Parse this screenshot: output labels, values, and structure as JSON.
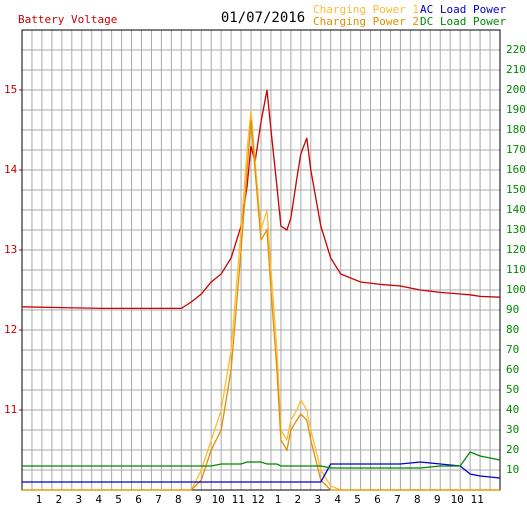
{
  "chart_data": {
    "type": "line",
    "title": "Battery Voltage",
    "subtitle": "01/07/2016",
    "x": [
      0,
      2,
      4,
      6,
      8,
      8.5,
      9,
      9.5,
      10,
      10.5,
      11,
      11.3,
      11.5,
      11.7,
      12,
      12.3,
      12.5,
      12.8,
      13,
      13.3,
      13.5,
      13.8,
      14,
      14.3,
      14.5,
      15,
      15.5,
      16,
      17,
      18,
      19,
      20,
      21,
      22,
      22.5,
      23,
      24
    ],
    "series": [
      {
        "name": "Battery Voltage",
        "color": "#cc0000",
        "axis": "y",
        "values": [
          12.29,
          12.28,
          12.27,
          12.27,
          12.27,
          12.35,
          12.45,
          12.6,
          12.7,
          12.9,
          13.3,
          13.8,
          14.3,
          14.1,
          14.6,
          15.0,
          14.5,
          13.8,
          13.3,
          13.25,
          13.4,
          13.9,
          14.2,
          14.4,
          14.0,
          13.3,
          12.9,
          12.7,
          12.6,
          12.57,
          12.55,
          12.5,
          12.47,
          12.45,
          12.44,
          12.42,
          12.41
        ]
      },
      {
        "name": "Charging Power 1",
        "color": "#ffbb33",
        "axis": "y2",
        "values": [
          0,
          0,
          0,
          0,
          0,
          0,
          10,
          25,
          40,
          70,
          130,
          170,
          190,
          165,
          130,
          140,
          110,
          70,
          30,
          25,
          35,
          40,
          45,
          40,
          30,
          10,
          2,
          0,
          0,
          0,
          0,
          0,
          0,
          0,
          0,
          0,
          0
        ]
      },
      {
        "name": "Charging Power 2",
        "color": "#e09000",
        "axis": "y2",
        "values": [
          0,
          0,
          0,
          0,
          0,
          0,
          5,
          20,
          30,
          60,
          120,
          160,
          185,
          160,
          125,
          130,
          100,
          60,
          25,
          20,
          30,
          35,
          38,
          35,
          25,
          5,
          0,
          0,
          0,
          0,
          0,
          0,
          0,
          0,
          0,
          0,
          0
        ]
      },
      {
        "name": "AC Load Power",
        "color": "#0000cc",
        "axis": "y2",
        "values": [
          4,
          4,
          4,
          4,
          4,
          4,
          4,
          4,
          4,
          4,
          4,
          4,
          4,
          4,
          4,
          4,
          4,
          4,
          4,
          4,
          4,
          4,
          4,
          4,
          4,
          4,
          13,
          13,
          13,
          13,
          13,
          14,
          13,
          12,
          8,
          7,
          6
        ]
      },
      {
        "name": "DC Load Power",
        "color": "#008800",
        "axis": "y2",
        "values": [
          12,
          12,
          12,
          12,
          12,
          12,
          12,
          12,
          13,
          13,
          13,
          14,
          14,
          14,
          14,
          13,
          13,
          13,
          12,
          12,
          12,
          12,
          12,
          12,
          12,
          12,
          11,
          11,
          11,
          11,
          11,
          11,
          12,
          12,
          19,
          17,
          15
        ]
      }
    ],
    "xlim": [
      0,
      24
    ],
    "xticks": [
      {
        "value": 1,
        "label": "1"
      },
      {
        "value": 2,
        "label": "2"
      },
      {
        "value": 3,
        "label": "3"
      },
      {
        "value": 4,
        "label": "4"
      },
      {
        "value": 5,
        "label": "5"
      },
      {
        "value": 6,
        "label": "6"
      },
      {
        "value": 7,
        "label": "7"
      },
      {
        "value": 8,
        "label": "8"
      },
      {
        "value": 9,
        "label": "9"
      },
      {
        "value": 10,
        "label": "10"
      },
      {
        "value": 11,
        "label": "11"
      },
      {
        "value": 12,
        "label": "12"
      },
      {
        "value": 13,
        "label": "1"
      },
      {
        "value": 14,
        "label": "2"
      },
      {
        "value": 15,
        "label": "3"
      },
      {
        "value": 16,
        "label": "4"
      },
      {
        "value": 17,
        "label": "5"
      },
      {
        "value": 18,
        "label": "6"
      },
      {
        "value": 19,
        "label": "7"
      },
      {
        "value": 20,
        "label": "8"
      },
      {
        "value": 21,
        "label": "9"
      },
      {
        "value": 22,
        "label": "10"
      },
      {
        "value": 23,
        "label": "11"
      }
    ],
    "ylim": [
      10,
      15.75
    ],
    "yticks": [
      11,
      12,
      13,
      14,
      15
    ],
    "y2lim": [
      0,
      230
    ],
    "y2ticks": [
      10,
      20,
      30,
      40,
      50,
      60,
      70,
      80,
      90,
      100,
      110,
      120,
      130,
      140,
      150,
      160,
      170,
      180,
      190,
      200,
      210,
      220
    ],
    "grid": true
  }
}
